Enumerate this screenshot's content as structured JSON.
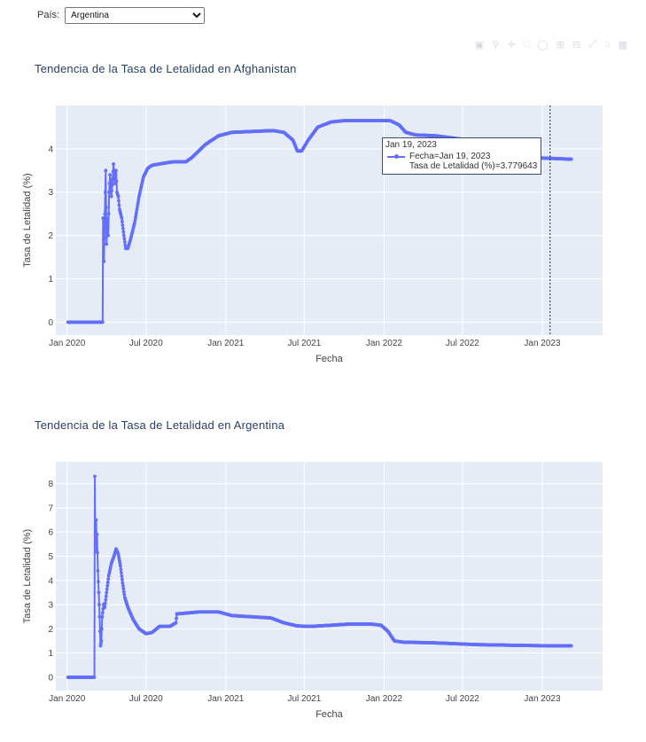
{
  "controls": {
    "country_label": "País:",
    "country_selected": "Argentina"
  },
  "modebar": {
    "icons": [
      "camera-icon",
      "zoom-icon",
      "pan-icon",
      "box-select-icon",
      "lasso-icon",
      "zoom-in-icon",
      "zoom-out-icon",
      "autoscale-icon",
      "reset-axes-icon",
      "plotly-logo-icon"
    ]
  },
  "colors": {
    "line": "#636efa",
    "plot_bg": "#e5ecf6",
    "title": "#2a3f5f"
  },
  "chart_data": [
    {
      "type": "line",
      "title": "Tendencia de la Tasa de Letalidad en Afghanistan",
      "xlabel": "Fecha",
      "ylabel": "Tasa de Letalidad (%)",
      "x_ticks": [
        "Jan 2020",
        "Jul 2020",
        "Jan 2021",
        "Jul 2021",
        "Jan 2022",
        "Jul 2022",
        "Jan 2023"
      ],
      "y_ticks": [
        "0",
        "1",
        "2",
        "3",
        "4"
      ],
      "ylim": [
        -0.3,
        5.0
      ],
      "xlim": [
        "2019-12-06",
        "2023-05-20"
      ],
      "grid": true,
      "markers": true,
      "series": [
        {
          "points": [
            [
              "2020-01-03",
              0
            ],
            [
              "2020-02-24",
              0
            ],
            [
              "2020-03-23",
              0
            ],
            [
              "2020-03-24",
              2.4
            ],
            [
              "2020-03-26",
              1.4
            ],
            [
              "2020-03-28",
              2.5
            ],
            [
              "2020-03-30",
              3.5
            ],
            [
              "2020-04-01",
              1.8
            ],
            [
              "2020-04-03",
              2.4
            ],
            [
              "2020-04-05",
              2.0
            ],
            [
              "2020-04-07",
              3.0
            ],
            [
              "2020-04-09",
              3.4
            ],
            [
              "2020-04-12",
              2.9
            ],
            [
              "2020-04-15",
              3.3
            ],
            [
              "2020-04-17",
              3.65
            ],
            [
              "2020-04-20",
              3.2
            ],
            [
              "2020-04-23",
              3.5
            ],
            [
              "2020-04-25",
              3.0
            ],
            [
              "2020-04-28",
              2.9
            ],
            [
              "2020-05-01",
              2.6
            ],
            [
              "2020-05-06",
              2.4
            ],
            [
              "2020-05-11",
              2.0
            ],
            [
              "2020-05-15",
              1.7
            ],
            [
              "2020-05-20",
              1.7
            ],
            [
              "2020-05-26",
              1.9
            ],
            [
              "2020-06-05",
              2.3
            ],
            [
              "2020-06-15",
              2.9
            ],
            [
              "2020-06-25",
              3.35
            ],
            [
              "2020-07-05",
              3.55
            ],
            [
              "2020-07-15",
              3.62
            ],
            [
              "2020-08-01",
              3.65
            ],
            [
              "2020-09-01",
              3.7
            ],
            [
              "2020-10-01",
              3.7
            ],
            [
              "2020-10-15",
              3.8
            ],
            [
              "2020-11-15",
              4.1
            ],
            [
              "2020-12-15",
              4.3
            ],
            [
              "2021-01-15",
              4.38
            ],
            [
              "2021-03-01",
              4.4
            ],
            [
              "2021-04-20",
              4.42
            ],
            [
              "2021-05-15",
              4.38
            ],
            [
              "2021-06-05",
              4.2
            ],
            [
              "2021-06-15",
              3.95
            ],
            [
              "2021-06-25",
              3.95
            ],
            [
              "2021-07-10",
              4.2
            ],
            [
              "2021-08-01",
              4.5
            ],
            [
              "2021-09-01",
              4.62
            ],
            [
              "2021-10-01",
              4.65
            ],
            [
              "2022-01-15",
              4.65
            ],
            [
              "2022-02-05",
              4.55
            ],
            [
              "2022-02-20",
              4.38
            ],
            [
              "2022-03-15",
              4.32
            ],
            [
              "2022-05-01",
              4.3
            ],
            [
              "2022-07-01",
              4.22
            ],
            [
              "2022-08-15",
              4.15
            ],
            [
              "2022-10-01",
              3.95
            ],
            [
              "2022-12-01",
              3.8
            ],
            [
              "2023-01-19",
              3.779643
            ],
            [
              "2023-03-09",
              3.76
            ]
          ]
        }
      ],
      "hover": {
        "date_header": "Jan 19, 2023",
        "line1": "Fecha=Jan 19, 2023",
        "line2": "Tasa de Letalidad (%)=3.779643"
      }
    },
    {
      "type": "line",
      "title": "Tendencia de la Tasa de Letalidad en Argentina",
      "xlabel": "Fecha",
      "ylabel": "Tasa de Letalidad (%)",
      "x_ticks": [
        "Jan 2020",
        "Jul 2020",
        "Jan 2021",
        "Jul 2021",
        "Jan 2022",
        "Jul 2022",
        "Jan 2023"
      ],
      "y_ticks": [
        "0",
        "1",
        "2",
        "3",
        "4",
        "5",
        "6",
        "7",
        "8"
      ],
      "ylim": [
        -0.55,
        8.9
      ],
      "xlim": [
        "2019-12-06",
        "2023-05-20"
      ],
      "grid": true,
      "markers": true,
      "series": [
        {
          "points": [
            [
              "2020-01-03",
              0
            ],
            [
              "2020-02-20",
              0
            ],
            [
              "2020-03-04",
              0
            ],
            [
              "2020-03-05",
              8.3
            ],
            [
              "2020-03-06",
              5.5
            ],
            [
              "2020-03-08",
              6.5
            ],
            [
              "2020-03-09",
              5.2
            ],
            [
              "2020-03-10",
              5.9
            ],
            [
              "2020-03-12",
              4.4
            ],
            [
              "2020-03-14",
              3.5
            ],
            [
              "2020-03-16",
              2.5
            ],
            [
              "2020-03-18",
              1.3
            ],
            [
              "2020-03-20",
              1.5
            ],
            [
              "2020-03-22",
              2.5
            ],
            [
              "2020-03-25",
              3.0
            ],
            [
              "2020-03-28",
              2.9
            ],
            [
              "2020-04-01",
              3.5
            ],
            [
              "2020-04-06",
              4.2
            ],
            [
              "2020-04-12",
              4.7
            ],
            [
              "2020-04-18",
              5.0
            ],
            [
              "2020-04-23",
              5.3
            ],
            [
              "2020-04-28",
              5.1
            ],
            [
              "2020-05-03",
              4.6
            ],
            [
              "2020-05-08",
              3.9
            ],
            [
              "2020-05-13",
              3.3
            ],
            [
              "2020-05-20",
              2.9
            ],
            [
              "2020-06-01",
              2.4
            ],
            [
              "2020-06-15",
              2.0
            ],
            [
              "2020-07-01",
              1.8
            ],
            [
              "2020-07-15",
              1.85
            ],
            [
              "2020-08-01",
              2.1
            ],
            [
              "2020-08-25",
              2.1
            ],
            [
              "2020-09-08",
              2.25
            ],
            [
              "2020-09-10",
              2.62
            ],
            [
              "2020-10-01",
              2.65
            ],
            [
              "2020-11-01",
              2.7
            ],
            [
              "2020-12-15",
              2.7
            ],
            [
              "2021-01-15",
              2.55
            ],
            [
              "2021-03-01",
              2.5
            ],
            [
              "2021-04-15",
              2.45
            ],
            [
              "2021-05-15",
              2.25
            ],
            [
              "2021-06-15",
              2.12
            ],
            [
              "2021-07-15",
              2.1
            ],
            [
              "2021-09-01",
              2.15
            ],
            [
              "2021-10-15",
              2.2
            ],
            [
              "2021-12-01",
              2.2
            ],
            [
              "2021-12-25",
              2.15
            ],
            [
              "2022-01-10",
              1.9
            ],
            [
              "2022-01-25",
              1.5
            ],
            [
              "2022-02-15",
              1.45
            ],
            [
              "2022-05-01",
              1.42
            ],
            [
              "2022-08-01",
              1.35
            ],
            [
              "2022-11-01",
              1.32
            ],
            [
              "2023-01-15",
              1.3
            ],
            [
              "2023-03-09",
              1.3
            ]
          ]
        }
      ]
    }
  ]
}
